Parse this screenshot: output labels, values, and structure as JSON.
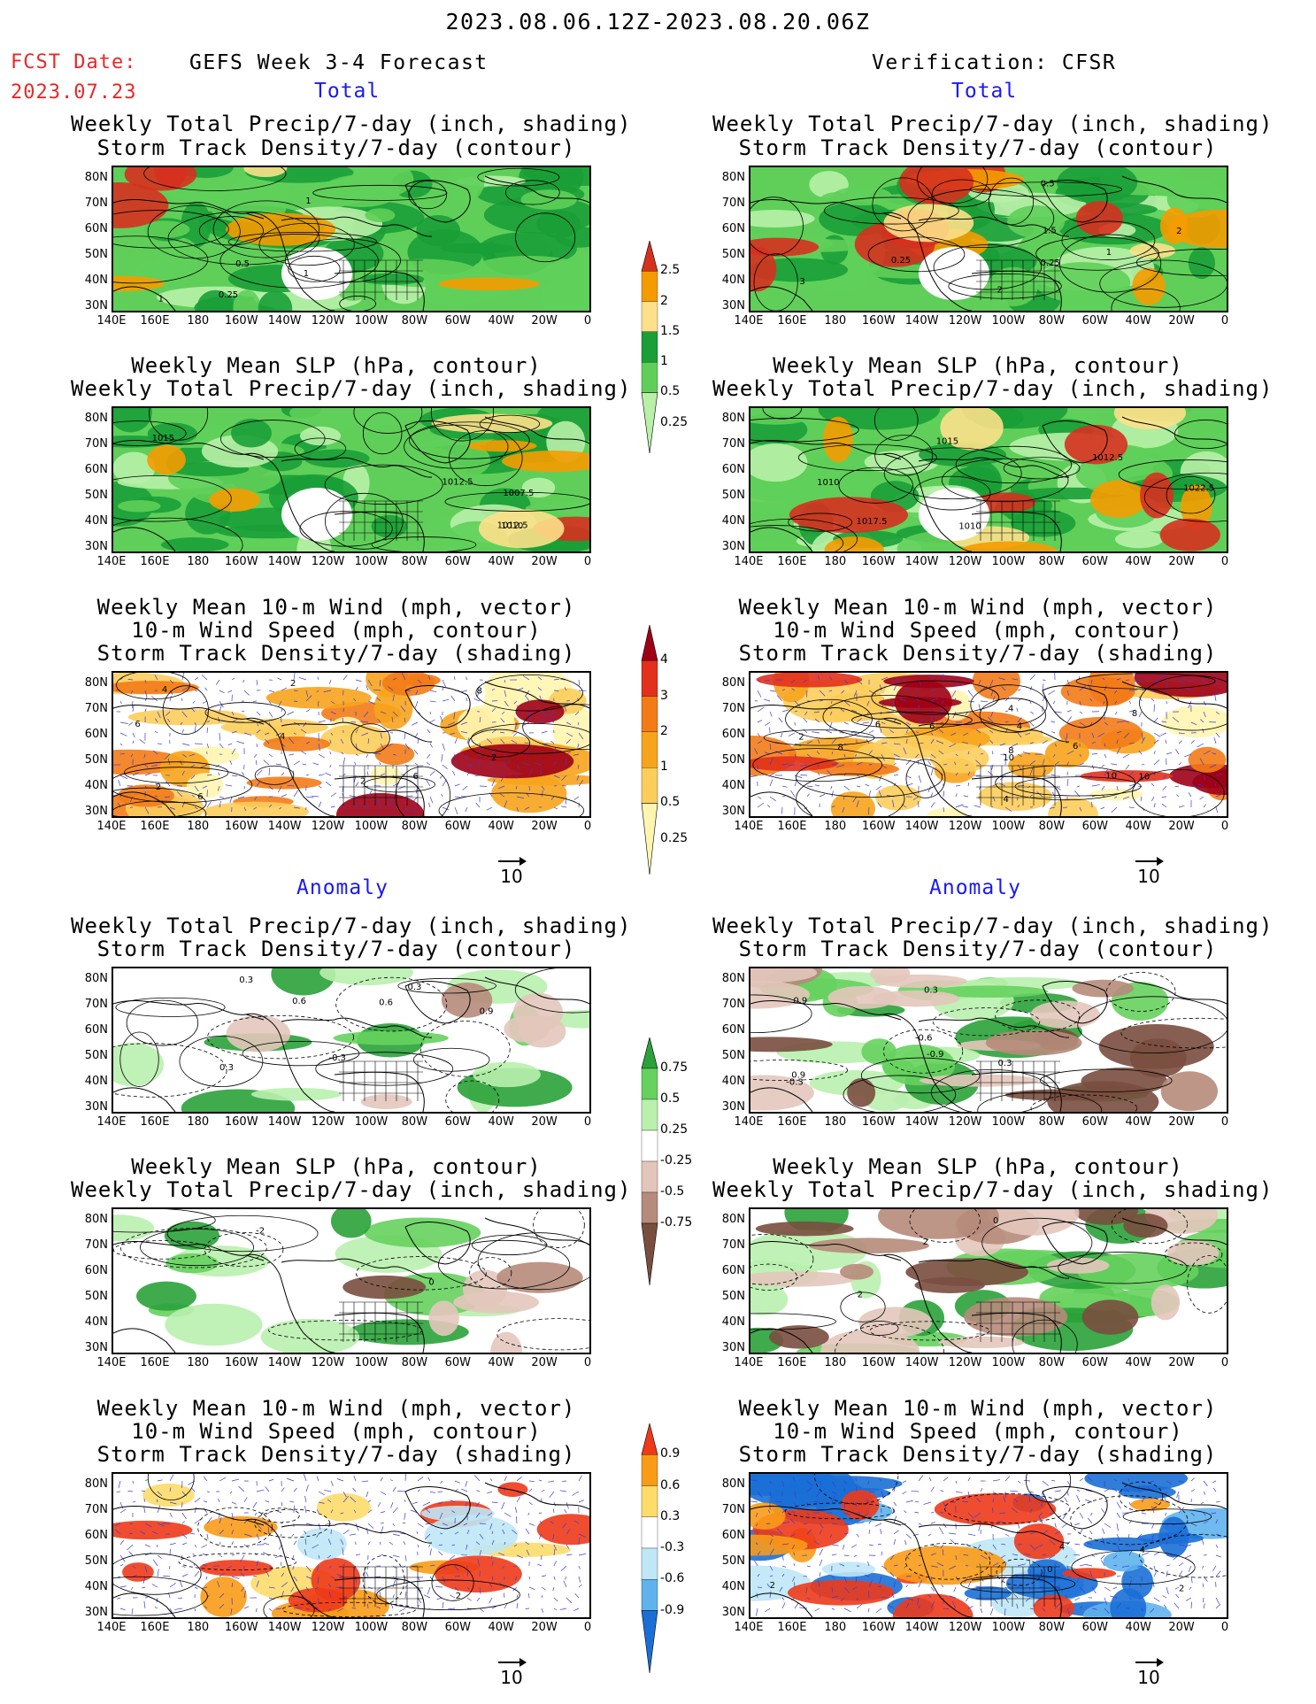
{
  "header": {
    "date_range": "2023.08.06.12Z-2023.08.20.06Z",
    "fcst_date_label": "FCST Date:",
    "fcst_date_value": "2023.07.23",
    "left_title": "GEFS Week 3-4 Forecast",
    "right_title": "Verification: CFSR",
    "total_label": "Total",
    "anomaly_label": "Anomaly"
  },
  "panel_titles": {
    "precip_storm": [
      "Weekly Total Precip/7-day (inch, shading)",
      "Storm Track Density/7-day (contour)"
    ],
    "slp_precip": [
      "Weekly Mean SLP (hPa, contour)",
      "Weekly Total Precip/7-day (inch, shading)"
    ],
    "wind_storm": [
      "Weekly Mean 10-m Wind (mph, vector)",
      "10-m Wind Speed (mph, contour)",
      "Storm Track Density/7-day (shading)"
    ]
  },
  "axes": {
    "lat": [
      "80N",
      "70N",
      "60N",
      "50N",
      "40N",
      "30N"
    ],
    "lon": [
      "140E",
      "160E",
      "180",
      "160W",
      "140W",
      "120W",
      "100W",
      "80W",
      "60W",
      "40W",
      "20W",
      "0"
    ]
  },
  "colorbars": {
    "total_precip": {
      "labels": [
        "2.5",
        "2",
        "1.5",
        "1",
        "0.5",
        "0.25"
      ],
      "colors": [
        "#d7301f",
        "#f59b00",
        "#fde08a",
        "#1a9e37",
        "#5fcf59",
        "#b8f0a8"
      ]
    },
    "total_storm": {
      "labels": [
        "4",
        "3",
        "2",
        "1",
        "0.5",
        "0.25"
      ],
      "colors": [
        "#9e0016",
        "#e2301c",
        "#f37b17",
        "#f7a41c",
        "#fccd5b",
        "#fff5b0"
      ]
    },
    "anom_precip": {
      "labels": [
        "0.75",
        "0.5",
        "0.25",
        "-0.25",
        "-0.5",
        "-0.75"
      ],
      "colors": [
        "#2aa23a",
        "#66d15e",
        "#b9f0ae",
        "#ffffff",
        "#e3c6bb",
        "#b68b7b",
        "#7a4e3f"
      ]
    },
    "anom_storm": {
      "labels": [
        "0.9",
        "0.6",
        "0.3",
        "-0.3",
        "-0.6",
        "-0.9"
      ],
      "colors": [
        "#ee3a1a",
        "#f99b17",
        "#fddc6a",
        "#ffffff",
        "#bfe7f5",
        "#5fb2ec",
        "#1a6fd6"
      ]
    }
  },
  "contour_labels": {
    "l1": [
      "1",
      "1",
      "0.25",
      "0.5",
      "1"
    ],
    "r1": [
      "0.25",
      "3",
      "2",
      "1.5",
      "2",
      "1",
      "0.5",
      "0.25"
    ],
    "l2": [
      "1007.5",
      "1012.5",
      "1010",
      "1015",
      "1012.5"
    ],
    "r2": [
      "1010",
      "1015",
      "1017.5",
      "1010",
      "1012.5",
      "1022.5"
    ],
    "l3": [
      "4",
      "2",
      "2",
      "2",
      "6",
      "4",
      "6",
      "2",
      "8",
      "6"
    ],
    "r3": [
      "4",
      "6",
      "10",
      "6",
      "4",
      "8",
      "10",
      "2",
      "10",
      "4",
      "8",
      "6",
      "8"
    ],
    "l4": [
      "0.9",
      "0.6",
      "0.3",
      "0.3",
      "-0.3",
      "0.3",
      "0.6"
    ],
    "r4": [
      "0.9",
      "-0.3",
      "0.3",
      "0.9",
      "0.3",
      "-0.6",
      "-0.9"
    ],
    "l5": [
      "-2",
      "0"
    ],
    "r5": [
      "0",
      "2",
      "2"
    ],
    "l6": [
      "2"
    ],
    "r6": [
      "2",
      "4",
      "4",
      "0",
      "2"
    ]
  },
  "vector_scale": "10"
}
